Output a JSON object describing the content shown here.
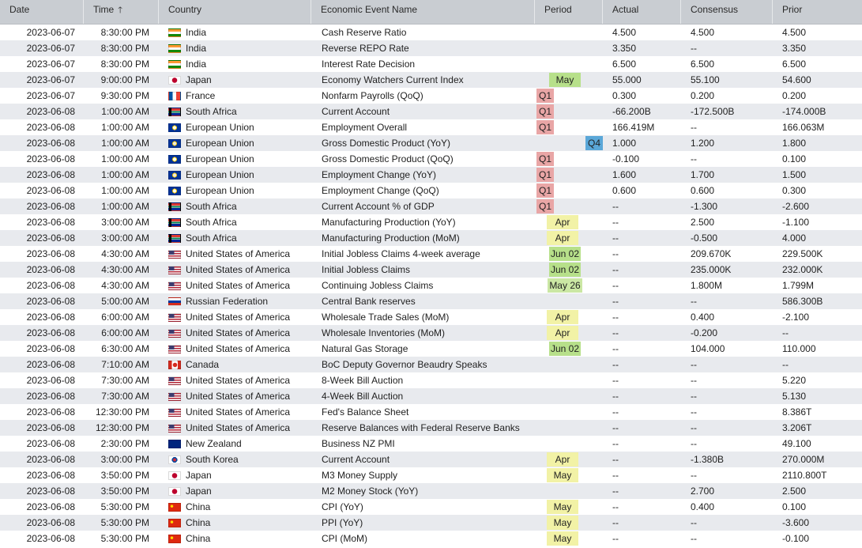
{
  "columns": [
    {
      "key": "date",
      "label": "Date"
    },
    {
      "key": "time",
      "label": "Time",
      "sort_icon": "arrow-up-icon"
    },
    {
      "key": "country",
      "label": "Country"
    },
    {
      "key": "event",
      "label": "Economic Event Name"
    },
    {
      "key": "period",
      "label": "Period"
    },
    {
      "key": "actual",
      "label": "Actual"
    },
    {
      "key": "consensus",
      "label": "Consensus"
    },
    {
      "key": "prior",
      "label": "Prior"
    }
  ],
  "sort_arrow": "🡑",
  "period_colors": {
    "q_red": "#e9a6a6",
    "q_blue": "#5aa7d8",
    "month_yellow": "#f2f2a6",
    "green": "#b7e08a",
    "light_green": "#cbe7a4"
  },
  "rows": [
    {
      "date": "2023-06-07",
      "time": "8:30:00 PM",
      "country": "India",
      "flag": "india-flag-icon",
      "event": "Cash Reserve Ratio",
      "period": "",
      "period_style": "",
      "actual": "4.500",
      "consensus": "4.500",
      "prior": "4.500"
    },
    {
      "date": "2023-06-07",
      "time": "8:30:00 PM",
      "country": "India",
      "flag": "india-flag-icon",
      "event": "Reverse REPO Rate",
      "period": "",
      "period_style": "",
      "actual": "3.350",
      "consensus": "--",
      "prior": "3.350"
    },
    {
      "date": "2023-06-07",
      "time": "8:30:00 PM",
      "country": "India",
      "flag": "india-flag-icon",
      "event": "Interest Rate Decision",
      "period": "",
      "period_style": "",
      "actual": "6.500",
      "consensus": "6.500",
      "prior": "6.500"
    },
    {
      "date": "2023-06-07",
      "time": "9:00:00 PM",
      "country": "Japan",
      "flag": "japan-flag-icon",
      "event": "Economy Watchers Current Index",
      "period": "May",
      "period_style": "green",
      "actual": "55.000",
      "consensus": "55.100",
      "prior": "54.600"
    },
    {
      "date": "2023-06-07",
      "time": "9:30:00 PM",
      "country": "France",
      "flag": "france-flag-icon",
      "event": "Nonfarm Payrolls (QoQ)",
      "period": "Q1",
      "period_style": "q_red",
      "actual": "0.300",
      "consensus": "0.200",
      "prior": "0.200"
    },
    {
      "date": "2023-06-08",
      "time": "1:00:00 AM",
      "country": "South Africa",
      "flag": "south-africa-flag-icon",
      "event": "Current Account",
      "period": "Q1",
      "period_style": "q_red",
      "actual": "-66.200B",
      "consensus": "-172.500B",
      "prior": "-174.000B"
    },
    {
      "date": "2023-06-08",
      "time": "1:00:00 AM",
      "country": "European Union",
      "flag": "eu-flag-icon",
      "event": "Employment Overall",
      "period": "Q1",
      "period_style": "q_red",
      "actual": "166.419M",
      "consensus": "--",
      "prior": "166.063M"
    },
    {
      "date": "2023-06-08",
      "time": "1:00:00 AM",
      "country": "European Union",
      "flag": "eu-flag-icon",
      "event": "Gross Domestic Product (YoY)",
      "period": "Q4",
      "period_style": "q_blue",
      "actual": "1.000",
      "consensus": "1.200",
      "prior": "1.800"
    },
    {
      "date": "2023-06-08",
      "time": "1:00:00 AM",
      "country": "European Union",
      "flag": "eu-flag-icon",
      "event": "Gross Domestic Product (QoQ)",
      "period": "Q1",
      "period_style": "q_red",
      "actual": "-0.100",
      "consensus": "--",
      "prior": "0.100"
    },
    {
      "date": "2023-06-08",
      "time": "1:00:00 AM",
      "country": "European Union",
      "flag": "eu-flag-icon",
      "event": "Employment Change (YoY)",
      "period": "Q1",
      "period_style": "q_red",
      "actual": "1.600",
      "consensus": "1.700",
      "prior": "1.500"
    },
    {
      "date": "2023-06-08",
      "time": "1:00:00 AM",
      "country": "European Union",
      "flag": "eu-flag-icon",
      "event": "Employment Change (QoQ)",
      "period": "Q1",
      "period_style": "q_red",
      "actual": "0.600",
      "consensus": "0.600",
      "prior": "0.300"
    },
    {
      "date": "2023-06-08",
      "time": "1:00:00 AM",
      "country": "South Africa",
      "flag": "south-africa-flag-icon",
      "event": "Current Account % of GDP",
      "period": "Q1",
      "period_style": "q_red",
      "actual": "--",
      "consensus": "-1.300",
      "prior": "-2.600"
    },
    {
      "date": "2023-06-08",
      "time": "3:00:00 AM",
      "country": "South Africa",
      "flag": "south-africa-flag-icon",
      "event": "Manufacturing Production (YoY)",
      "period": "Apr",
      "period_style": "month_yellow",
      "actual": "--",
      "consensus": "2.500",
      "prior": "-1.100"
    },
    {
      "date": "2023-06-08",
      "time": "3:00:00 AM",
      "country": "South Africa",
      "flag": "south-africa-flag-icon",
      "event": "Manufacturing Production (MoM)",
      "period": "Apr",
      "period_style": "month_yellow",
      "actual": "--",
      "consensus": "-0.500",
      "prior": "4.000"
    },
    {
      "date": "2023-06-08",
      "time": "4:30:00 AM",
      "country": "United States of America",
      "flag": "usa-flag-icon",
      "event": "Initial Jobless Claims 4-week average",
      "period": "Jun 02",
      "period_style": "green",
      "actual": "--",
      "consensus": "209.670K",
      "prior": "229.500K"
    },
    {
      "date": "2023-06-08",
      "time": "4:30:00 AM",
      "country": "United States of America",
      "flag": "usa-flag-icon",
      "event": "Initial Jobless Claims",
      "period": "Jun 02",
      "period_style": "green",
      "actual": "--",
      "consensus": "235.000K",
      "prior": "232.000K"
    },
    {
      "date": "2023-06-08",
      "time": "4:30:00 AM",
      "country": "United States of America",
      "flag": "usa-flag-icon",
      "event": "Continuing Jobless Claims",
      "period": "May 26",
      "period_style": "light_green",
      "actual": "--",
      "consensus": "1.800M",
      "prior": "1.799M"
    },
    {
      "date": "2023-06-08",
      "time": "5:00:00 AM",
      "country": "Russian Federation",
      "flag": "russia-flag-icon",
      "event": "Central Bank reserves",
      "period": "",
      "period_style": "",
      "actual": "--",
      "consensus": "--",
      "prior": "586.300B"
    },
    {
      "date": "2023-06-08",
      "time": "6:00:00 AM",
      "country": "United States of America",
      "flag": "usa-flag-icon",
      "event": "Wholesale Trade Sales (MoM)",
      "period": "Apr",
      "period_style": "month_yellow",
      "actual": "--",
      "consensus": "0.400",
      "prior": "-2.100"
    },
    {
      "date": "2023-06-08",
      "time": "6:00:00 AM",
      "country": "United States of America",
      "flag": "usa-flag-icon",
      "event": "Wholesale Inventories (MoM)",
      "period": "Apr",
      "period_style": "month_yellow",
      "actual": "--",
      "consensus": "-0.200",
      "prior": "--"
    },
    {
      "date": "2023-06-08",
      "time": "6:30:00 AM",
      "country": "United States of America",
      "flag": "usa-flag-icon",
      "event": "Natural Gas Storage",
      "period": "Jun 02",
      "period_style": "green",
      "actual": "--",
      "consensus": "104.000",
      "prior": "110.000"
    },
    {
      "date": "2023-06-08",
      "time": "7:10:00 AM",
      "country": "Canada",
      "flag": "canada-flag-icon",
      "event": "BoC Deputy Governor Beaudry Speaks",
      "period": "",
      "period_style": "",
      "actual": "--",
      "consensus": "--",
      "prior": "--"
    },
    {
      "date": "2023-06-08",
      "time": "7:30:00 AM",
      "country": "United States of America",
      "flag": "usa-flag-icon",
      "event": "8-Week Bill Auction",
      "period": "",
      "period_style": "",
      "actual": "--",
      "consensus": "--",
      "prior": "5.220"
    },
    {
      "date": "2023-06-08",
      "time": "7:30:00 AM",
      "country": "United States of America",
      "flag": "usa-flag-icon",
      "event": "4-Week Bill Auction",
      "period": "",
      "period_style": "",
      "actual": "--",
      "consensus": "--",
      "prior": "5.130"
    },
    {
      "date": "2023-06-08",
      "time": "12:30:00 PM",
      "country": "United States of America",
      "flag": "usa-flag-icon",
      "event": "Fed's Balance Sheet",
      "period": "",
      "period_style": "",
      "actual": "--",
      "consensus": "--",
      "prior": "8.386T"
    },
    {
      "date": "2023-06-08",
      "time": "12:30:00 PM",
      "country": "United States of America",
      "flag": "usa-flag-icon",
      "event": "Reserve Balances with Federal Reserve Banks",
      "period": "",
      "period_style": "",
      "actual": "--",
      "consensus": "--",
      "prior": "3.206T"
    },
    {
      "date": "2023-06-08",
      "time": "2:30:00 PM",
      "country": "New Zealand",
      "flag": "new-zealand-flag-icon",
      "event": "Business NZ PMI",
      "period": "",
      "period_style": "",
      "actual": "--",
      "consensus": "--",
      "prior": "49.100"
    },
    {
      "date": "2023-06-08",
      "time": "3:00:00 PM",
      "country": "South Korea",
      "flag": "south-korea-flag-icon",
      "event": "Current Account",
      "period": "Apr",
      "period_style": "month_yellow",
      "actual": "--",
      "consensus": "-1.380B",
      "prior": "270.000M"
    },
    {
      "date": "2023-06-08",
      "time": "3:50:00 PM",
      "country": "Japan",
      "flag": "japan-flag-icon",
      "event": "M3 Money Supply",
      "period": "May",
      "period_style": "month_yellow",
      "actual": "--",
      "consensus": "--",
      "prior": "2110.800T"
    },
    {
      "date": "2023-06-08",
      "time": "3:50:00 PM",
      "country": "Japan",
      "flag": "japan-flag-icon",
      "event": "M2 Money Stock (YoY)",
      "period": "",
      "period_style": "",
      "actual": "--",
      "consensus": "2.700",
      "prior": "2.500"
    },
    {
      "date": "2023-06-08",
      "time": "5:30:00 PM",
      "country": "China",
      "flag": "china-flag-icon",
      "event": "CPI (YoY)",
      "period": "May",
      "period_style": "month_yellow",
      "actual": "--",
      "consensus": "0.400",
      "prior": "0.100"
    },
    {
      "date": "2023-06-08",
      "time": "5:30:00 PM",
      "country": "China",
      "flag": "china-flag-icon",
      "event": "PPI (YoY)",
      "period": "May",
      "period_style": "month_yellow",
      "actual": "--",
      "consensus": "--",
      "prior": "-3.600"
    },
    {
      "date": "2023-06-08",
      "time": "5:30:00 PM",
      "country": "China",
      "flag": "china-flag-icon",
      "event": "CPI (MoM)",
      "period": "May",
      "period_style": "month_yellow",
      "actual": "--",
      "consensus": "--",
      "prior": "-0.100"
    }
  ]
}
